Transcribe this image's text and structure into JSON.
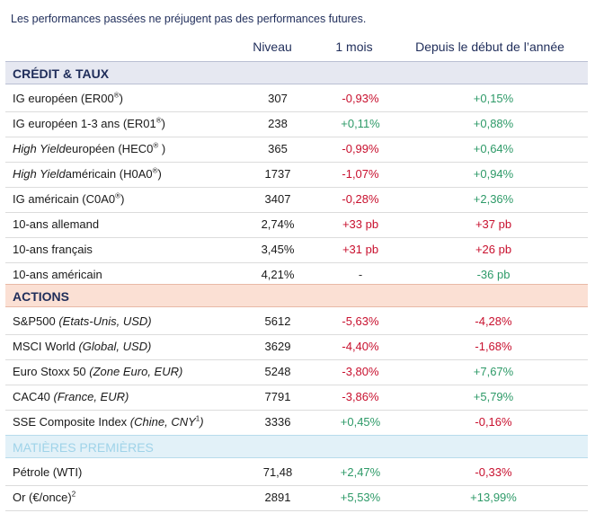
{
  "disclaimer": "Les performances passées ne préjugent pas des performances futures.",
  "headers": {
    "level": "Niveau",
    "month": "1 mois",
    "ytd": "Depuis le début de l’année"
  },
  "sections": {
    "credit": "CRÉDIT & TAUX",
    "equities": "ACTIONS",
    "commodities": "MATIÈRES PREMIÈRES"
  },
  "rows": [
    {
      "name": "IG européen (ER00",
      "sup": "®",
      "tail": ")",
      "level": "307",
      "month": "-0,93%",
      "ytd": "+0,15%"
    },
    {
      "name": "IG européen 1-3 ans (ER01",
      "sup": "®",
      "tail": ")",
      "level": "238",
      "month": "+0,11%",
      "ytd": "+0,88%"
    },
    {
      "italic": "High Yield",
      "name": "européen (HEC0",
      "sup": "®",
      "tail": " )",
      "level": "365",
      "month": "-0,99%",
      "ytd": "+0,64%"
    },
    {
      "italic": "High Yield",
      "name": "américain (H0A0",
      "sup": "®",
      "tail": ")",
      "level": "1737",
      "month": "-1,07%",
      "ytd": "+0,94%"
    },
    {
      "name": "IG américain (C0A0",
      "sup": "®",
      "tail": ")",
      "level": "3407",
      "month": "-0,28%",
      "ytd": "+2,36%"
    },
    {
      "name": "10-ans allemand",
      "level": "2,74%",
      "month": "+33 pb",
      "ytd": "+37 pb"
    },
    {
      "name": "10-ans français",
      "level": "3,45%",
      "month": "+31 pb",
      "ytd": "+26 pb"
    },
    {
      "name": "10-ans américain",
      "level": "4,21%",
      "month": "-",
      "ytd": "-36 pb"
    },
    {
      "name": "S&P500 ",
      "italic_after": "(Etats-Unis, USD)",
      "level": "5612",
      "month": "-5,63%",
      "ytd": "-4,28%"
    },
    {
      "name": "MSCI World ",
      "italic_after": "(Global, USD)",
      "level": "3629",
      "month": "-4,40%",
      "ytd": "-1,68%"
    },
    {
      "name": "Euro Stoxx 50 ",
      "italic_after": "(Zone Euro, EUR)",
      "level": "5248",
      "month": "-3,80%",
      "ytd": "+7,67%"
    },
    {
      "name": "CAC40 ",
      "italic_after": "(France, EUR)",
      "level": "7791",
      "month": "-3,86%",
      "ytd": "+5,79%"
    },
    {
      "name": "SSE Composite Index ",
      "italic_after": "(Chine, CNY",
      "sup": "1",
      "tail_italic": ")",
      "level": "3336",
      "month": "+0,45%",
      "ytd": "-0,16%"
    },
    {
      "name": "Pétrole (WTI)",
      "level": "71,48",
      "month": "+2,47%",
      "ytd": "-0,33%"
    },
    {
      "name": "Or (€/once)",
      "sup": "2",
      "level": "2891",
      "month": "+5,53%",
      "ytd": "+13,99%"
    }
  ],
  "colors": {
    "negative": "#c8102e",
    "positive": "#2e9a68",
    "header_text": "#1f2d5a"
  }
}
